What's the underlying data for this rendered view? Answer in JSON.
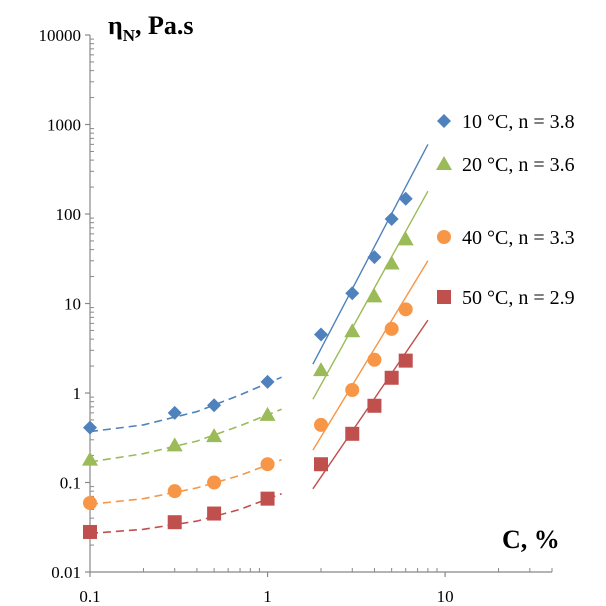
{
  "chart_data": {
    "type": "scatter",
    "x_scale": "log",
    "y_scale": "log",
    "xlim": [
      0.1,
      40
    ],
    "ylim": [
      0.01,
      10000
    ],
    "grid": false,
    "legend_position": "right",
    "ylabel": {
      "main": "η",
      "sub": "N",
      "rest": ", Pa.s"
    },
    "xlabel": "C, %",
    "x_ticks": [
      {
        "value": 0.1,
        "label": "0.1"
      },
      {
        "value": 1,
        "label": "1"
      },
      {
        "value": 10,
        "label": "10"
      }
    ],
    "y_ticks": [
      {
        "value": 0.01,
        "label": "0.01"
      },
      {
        "value": 0.1,
        "label": "0.1"
      },
      {
        "value": 1,
        "label": "1"
      },
      {
        "value": 10,
        "label": "10"
      },
      {
        "value": 100,
        "label": "100"
      },
      {
        "value": 1000,
        "label": "1000"
      },
      {
        "value": 10000,
        "label": "10000"
      }
    ],
    "series": [
      {
        "name": "10 °C, n = 3.8",
        "marker": "diamond",
        "color": "#4f81bd",
        "points": [
          {
            "x": 0.1,
            "y": 0.41
          },
          {
            "x": 0.3,
            "y": 0.6
          },
          {
            "x": 0.5,
            "y": 0.73
          },
          {
            "x": 1,
            "y": 1.33
          },
          {
            "x": 2,
            "y": 4.5
          },
          {
            "x": 3,
            "y": 13
          },
          {
            "x": 4,
            "y": 33
          },
          {
            "x": 5,
            "y": 88
          },
          {
            "x": 6,
            "y": 148
          }
        ],
        "dilute_fit": [
          [
            0.1,
            0.37
          ],
          [
            0.2,
            0.44
          ],
          [
            0.4,
            0.62
          ],
          [
            0.7,
            0.95
          ],
          [
            1.2,
            1.5
          ]
        ],
        "power_fit": [
          [
            1.8,
            2.1
          ],
          [
            8,
            600
          ]
        ]
      },
      {
        "name": "20 °C, n = 3.6",
        "marker": "triangle",
        "color": "#9bbb59",
        "points": [
          {
            "x": 0.1,
            "y": 0.18
          },
          {
            "x": 0.3,
            "y": 0.26
          },
          {
            "x": 0.5,
            "y": 0.33
          },
          {
            "x": 1,
            "y": 0.57
          },
          {
            "x": 2,
            "y": 1.8
          },
          {
            "x": 3,
            "y": 4.9
          },
          {
            "x": 4,
            "y": 12
          },
          {
            "x": 5,
            "y": 28
          },
          {
            "x": 6,
            "y": 52
          }
        ],
        "dilute_fit": [
          [
            0.1,
            0.17
          ],
          [
            0.2,
            0.21
          ],
          [
            0.4,
            0.29
          ],
          [
            0.7,
            0.43
          ],
          [
            1.2,
            0.66
          ]
        ],
        "power_fit": [
          [
            1.8,
            0.85
          ],
          [
            8,
            180
          ]
        ]
      },
      {
        "name": "40 °C, n = 3.3",
        "marker": "circle",
        "color": "#f79646",
        "points": [
          {
            "x": 0.1,
            "y": 0.059
          },
          {
            "x": 0.3,
            "y": 0.08
          },
          {
            "x": 0.5,
            "y": 0.1
          },
          {
            "x": 1,
            "y": 0.16
          },
          {
            "x": 2,
            "y": 0.44
          },
          {
            "x": 3,
            "y": 1.08
          },
          {
            "x": 4,
            "y": 2.35
          },
          {
            "x": 5,
            "y": 5.2
          },
          {
            "x": 6,
            "y": 8.6
          }
        ],
        "dilute_fit": [
          [
            0.1,
            0.057
          ],
          [
            0.2,
            0.066
          ],
          [
            0.4,
            0.087
          ],
          [
            0.7,
            0.12
          ],
          [
            1.2,
            0.18
          ]
        ],
        "power_fit": [
          [
            1.8,
            0.23
          ],
          [
            8,
            30
          ]
        ]
      },
      {
        "name": "50 °C, n = 2.9",
        "marker": "square",
        "color": "#c0504d",
        "points": [
          {
            "x": 0.1,
            "y": 0.028
          },
          {
            "x": 0.3,
            "y": 0.036
          },
          {
            "x": 0.5,
            "y": 0.045
          },
          {
            "x": 1,
            "y": 0.066
          },
          {
            "x": 2,
            "y": 0.16
          },
          {
            "x": 3,
            "y": 0.35
          },
          {
            "x": 4,
            "y": 0.72
          },
          {
            "x": 5,
            "y": 1.48
          },
          {
            "x": 6,
            "y": 2.3
          }
        ],
        "dilute_fit": [
          [
            0.1,
            0.027
          ],
          [
            0.2,
            0.03
          ],
          [
            0.4,
            0.037
          ],
          [
            0.7,
            0.05
          ],
          [
            1.2,
            0.075
          ]
        ],
        "power_fit": [
          [
            1.8,
            0.085
          ],
          [
            8,
            6.5
          ]
        ]
      }
    ]
  }
}
